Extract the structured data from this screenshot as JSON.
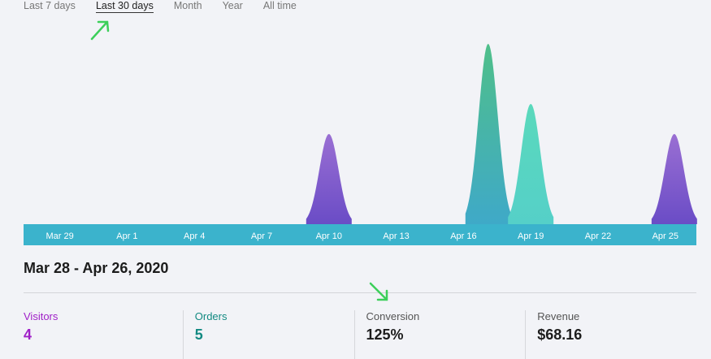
{
  "tabs": [
    {
      "label": "Last 7 days"
    },
    {
      "label": "Last 30 days",
      "active": true
    },
    {
      "label": "Month"
    },
    {
      "label": "Year"
    },
    {
      "label": "All time"
    }
  ],
  "date_range": "Mar 28 - Apr 26, 2020",
  "stats": [
    {
      "label": "Visitors",
      "value": "4",
      "color": "#a020c8"
    },
    {
      "label": "Orders",
      "value": "5",
      "color": "#138a82"
    },
    {
      "label": "Conversion",
      "value": "125%",
      "color": "#555555"
    },
    {
      "label": "Revenue",
      "value": "$68.16",
      "color": "#555555"
    }
  ],
  "colors": {
    "axis_band": "#3bb3cc",
    "annotation_arrow": "#3ccf5a"
  },
  "chart_data": {
    "type": "area",
    "x_start": "Mar 28",
    "x_end": "Apr 26",
    "tick_labels": [
      "Mar 29",
      "Apr 1",
      "Apr 4",
      "Apr 7",
      "Apr 10",
      "Apr 13",
      "Apr 16",
      "Apr 19",
      "Apr 22",
      "Apr 25"
    ],
    "peaks": [
      {
        "series": "visitors",
        "date": "Apr 10",
        "value": 1.5,
        "top": "#9a6fd3",
        "bottom": "#6a4cc6"
      },
      {
        "series": "orders",
        "date": "Apr 17",
        "value": 3,
        "top": "#4fbf8a",
        "bottom": "#3fa9c8"
      },
      {
        "series": "orders",
        "date": "Apr 19",
        "value": 2,
        "top": "#5ad9bc",
        "bottom": "#55d0c8"
      },
      {
        "series": "visitors",
        "date": "Apr 25",
        "value": 1.5,
        "top": "#9a6fd3",
        "bottom": "#6a4cc6"
      }
    ]
  }
}
